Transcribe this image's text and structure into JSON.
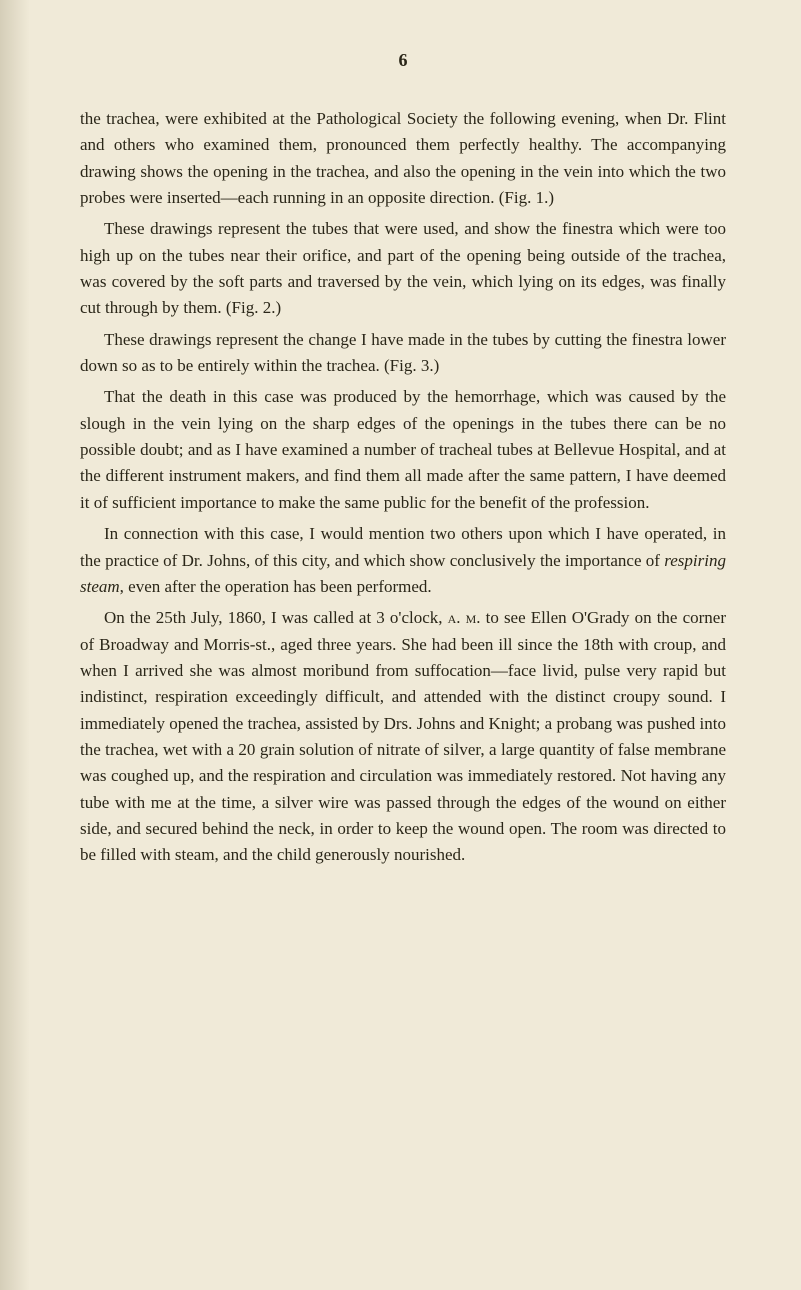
{
  "page_number": "6",
  "paragraphs": [
    {
      "text": "the trachea, were exhibited at the Pathological Society the following evening, when Dr. Flint and others who examined them, pronounced them perfectly healthy. The accompanying drawing shows the opening in the trachea, and also the opening in the vein into which the two probes were inserted—each running in an opposite direction. (Fig. 1.)",
      "indent": false
    },
    {
      "text": "These drawings represent the tubes that were used, and show the finestra which were too high up on the tubes near their orifice, and part of the opening being outside of the trachea, was covered by the soft parts and traversed by the vein, which lying on its edges, was finally cut through by them. (Fig. 2.)",
      "indent": true
    },
    {
      "text": "These drawings represent the change I have made in the tubes by cutting the finestra lower down so as to be entirely within the trachea. (Fig. 3.)",
      "indent": true
    },
    {
      "text": "That the death in this case was produced by the hemorrhage, which was caused by the slough in the vein lying on the sharp edges of the openings in the tubes there can be no possible doubt; and as I have examined a number of tracheal tubes at Bellevue Hospital, and at the different instrument makers, and find them all made after the same pattern, I have deemed it of sufficient importance to make the same public for the benefit of the profession.",
      "indent": true
    },
    {
      "text": "In connection with this case, I would mention two others upon which I have operated, in the practice of Dr. Johns, of this city, and which show conclusively the importance of ",
      "italic_text": "respiring steam",
      "text_after": ", even after the operation has been performed.",
      "indent": true
    },
    {
      "text": "On the 25th July, 1860, I was called at 3 o'clock, ",
      "small_caps_text": "a. m.",
      "text_after": " to see Ellen O'Grady on the corner of Broadway and Morris-st., aged three years. She had been ill since the 18th with croup, and when I arrived she was almost moribund from suffocation—face livid, pulse very rapid but indistinct, respiration exceedingly difficult, and attended with the distinct croupy sound. I immediately opened the trachea, assisted by Drs. Johns and Knight; a probang was pushed into the trachea, wet with a 20 grain solution of nitrate of silver, a large quantity of false membrane was coughed up, and the respiration and circulation was immediately restored. Not having any tube with me at the time, a silver wire was passed through the edges of the wound on either side, and secured behind the neck, in order to keep the wound open. The room was directed to be filled with steam, and the child generously nourished.",
      "indent": true
    }
  ],
  "colors": {
    "background": "#f0ead8",
    "text": "#2a2618"
  }
}
